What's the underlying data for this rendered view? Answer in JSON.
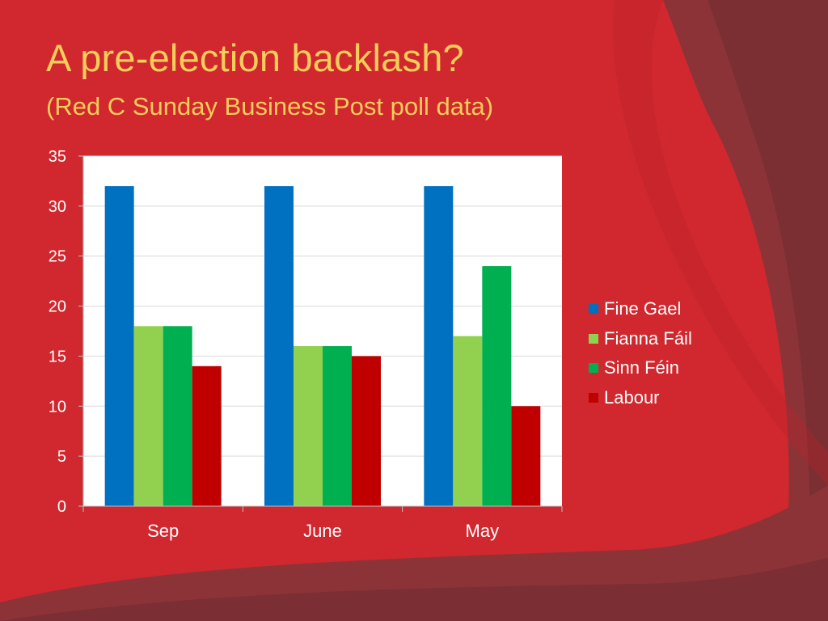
{
  "slide": {
    "title": "A pre-election backlash?",
    "subtitle": "(Red C Sunday Business Post poll data)"
  },
  "colors": {
    "background": "#d0282e",
    "title": "#f6cd5a",
    "plot_area": "#ffffff"
  },
  "chart_data": {
    "type": "bar",
    "title": "",
    "xlabel": "",
    "ylabel": "",
    "categories": [
      "Sep",
      "June",
      "May"
    ],
    "series": [
      {
        "name": "Fine Gael",
        "color": "#0070c0",
        "values": [
          32,
          32,
          32
        ]
      },
      {
        "name": "Fianna Fáil",
        "color": "#92d050",
        "values": [
          18,
          16,
          17
        ]
      },
      {
        "name": "Sinn Féin",
        "color": "#00b050",
        "values": [
          18,
          16,
          24
        ]
      },
      {
        "name": "Labour",
        "color": "#c00000",
        "values": [
          14,
          15,
          10
        ]
      }
    ],
    "ylim": [
      0,
      35
    ],
    "yticks": [
      0,
      5,
      10,
      15,
      20,
      25,
      30,
      35
    ],
    "grid": true,
    "legend_position": "right"
  }
}
